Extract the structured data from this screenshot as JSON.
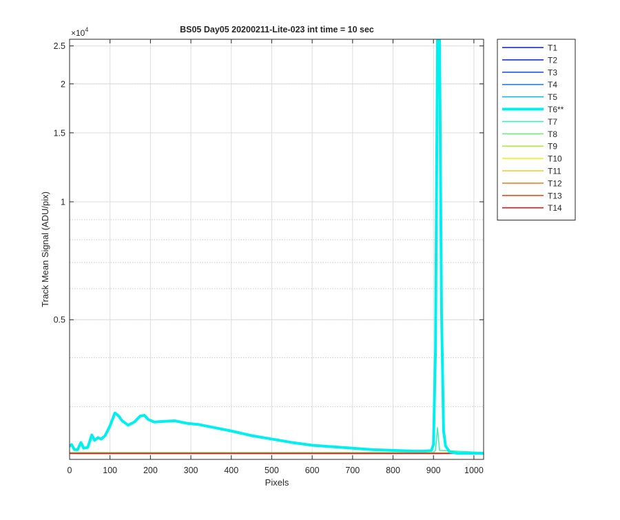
{
  "chart_data": {
    "type": "line",
    "title": "BS05 Day05 20200211-Lite-023 int time = 10 sec",
    "xlabel": "Pixels",
    "ylabel": "Track Mean Signal (ADU/pix)",
    "y_exponent_label": "×10",
    "y_exponent_power": "4",
    "y_scale": "log",
    "xlim": [
      0,
      1024
    ],
    "ylim": [
      2200,
      26000
    ],
    "x_ticks": [
      0,
      100,
      200,
      300,
      400,
      500,
      600,
      700,
      800,
      900,
      1000
    ],
    "x_tick_labels": [
      "0",
      "100",
      "200",
      "300",
      "400",
      "500",
      "600",
      "700",
      "800",
      "900",
      "1000"
    ],
    "y_ticks": [
      5000,
      10000,
      15000,
      20000,
      25000
    ],
    "y_tick_labels": [
      "0.5",
      "1",
      "1.5",
      "2",
      "2.5"
    ],
    "grid": true,
    "legend_position": "outside-right",
    "series": [
      {
        "name": "T1",
        "color": "#0a1fb4",
        "width": 1.6,
        "x": [
          0,
          1024
        ],
        "y": [
          2280,
          2280
        ]
      },
      {
        "name": "T2",
        "color": "#1530d6",
        "width": 1.6,
        "x": [
          0,
          1024
        ],
        "y": [
          2280,
          2280
        ]
      },
      {
        "name": "T3",
        "color": "#1e55e6",
        "width": 1.6,
        "x": [
          0,
          1024
        ],
        "y": [
          2280,
          2280
        ]
      },
      {
        "name": "T4",
        "color": "#1e7ddc",
        "width": 1.6,
        "x": [
          0,
          1024
        ],
        "y": [
          2280,
          2280
        ]
      },
      {
        "name": "T5",
        "color": "#14b4f0",
        "width": 1.6,
        "x": [
          0,
          1024
        ],
        "y": [
          2280,
          2280
        ]
      },
      {
        "name": "T6**",
        "color": "#00f0f0",
        "width": 4,
        "x": [
          0,
          5,
          12,
          20,
          28,
          35,
          45,
          55,
          62,
          70,
          78,
          88,
          100,
          112,
          120,
          130,
          145,
          160,
          175,
          185,
          195,
          210,
          230,
          260,
          290,
          320,
          360,
          400,
          450,
          500,
          550,
          600,
          650,
          700,
          750,
          800,
          850,
          880,
          895,
          900,
          905,
          910,
          915,
          920,
          925,
          930,
          940,
          960,
          1000,
          1024
        ],
        "y": [
          2380,
          2400,
          2330,
          2330,
          2430,
          2350,
          2360,
          2540,
          2460,
          2500,
          2480,
          2530,
          2680,
          2890,
          2850,
          2760,
          2690,
          2740,
          2840,
          2850,
          2780,
          2740,
          2750,
          2760,
          2720,
          2700,
          2650,
          2600,
          2530,
          2480,
          2430,
          2390,
          2370,
          2350,
          2330,
          2320,
          2310,
          2310,
          2320,
          2400,
          4200,
          26000,
          26000,
          5200,
          2600,
          2380,
          2300,
          2280,
          2280,
          2280
        ]
      },
      {
        "name": "T7",
        "color": "#3cf0b4",
        "width": 1.6,
        "x": [
          0,
          900,
          905,
          910,
          915,
          1024
        ],
        "y": [
          2290,
          2290,
          2320,
          2650,
          2320,
          2290
        ]
      },
      {
        "name": "T8",
        "color": "#6ef078",
        "width": 1.6,
        "x": [
          0,
          1024
        ],
        "y": [
          2285,
          2285
        ]
      },
      {
        "name": "T9",
        "color": "#a8f03c",
        "width": 1.6,
        "x": [
          0,
          1024
        ],
        "y": [
          2285,
          2285
        ]
      },
      {
        "name": "T10",
        "color": "#f0f01e",
        "width": 1.6,
        "x": [
          0,
          1024
        ],
        "y": [
          2280,
          2280
        ]
      },
      {
        "name": "T11",
        "color": "#f0c81e",
        "width": 1.6,
        "x": [
          0,
          1024
        ],
        "y": [
          2280,
          2280
        ]
      },
      {
        "name": "T12",
        "color": "#f0821e",
        "width": 1.6,
        "x": [
          0,
          1024
        ],
        "y": [
          2280,
          2280
        ]
      },
      {
        "name": "T13",
        "color": "#f04b1e",
        "width": 1.6,
        "x": [
          0,
          1024
        ],
        "y": [
          2280,
          2280
        ]
      },
      {
        "name": "T14",
        "color": "#e61414",
        "width": 1.6,
        "x": [
          0,
          1024
        ],
        "y": [
          2278,
          2278
        ]
      }
    ]
  }
}
